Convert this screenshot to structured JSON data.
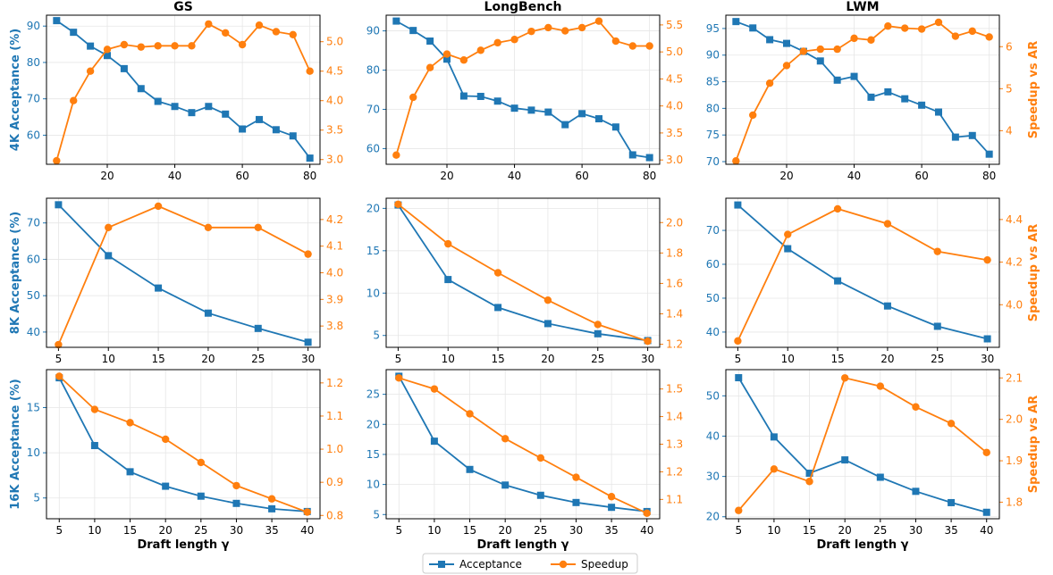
{
  "colors": {
    "acceptance": "#1f77b4",
    "speedup": "#ff7f0e",
    "grid": "#e6e6e6",
    "frame": "#000000"
  },
  "legend": {
    "acceptance": "Acceptance",
    "speedup": "Speedup"
  },
  "chart_data": [
    {
      "type": "line",
      "title": "GS",
      "row": 0,
      "col": 0,
      "ylabel_left": "4K Acceptance (%)",
      "ylabel_right": "",
      "xlabel": "",
      "x": [
        5,
        10,
        15,
        20,
        25,
        30,
        35,
        40,
        45,
        50,
        55,
        60,
        65,
        70,
        75,
        80
      ],
      "xlim": [
        2,
        83
      ],
      "xticks": [
        20,
        40,
        60,
        80
      ],
      "ylim_left": [
        52,
        93
      ],
      "yticks_left": [
        60,
        70,
        80,
        90
      ],
      "ylim_right": [
        2.92,
        5.45
      ],
      "yticks_right": [
        3.0,
        3.5,
        4.0,
        4.5,
        5.0
      ],
      "series": [
        {
          "name": "Acceptance",
          "axis": "left",
          "values": [
            91.5,
            88.3,
            84.5,
            81.9,
            78.3,
            72.8,
            69.3,
            67.9,
            66.2,
            67.9,
            65.8,
            61.7,
            64.3,
            61.5,
            59.8,
            53.7
          ]
        },
        {
          "name": "Speedup",
          "axis": "right",
          "values": [
            2.98,
            4.0,
            4.5,
            4.87,
            4.95,
            4.91,
            4.93,
            4.93,
            4.93,
            5.3,
            5.15,
            4.95,
            5.28,
            5.17,
            5.12,
            4.5
          ]
        }
      ]
    },
    {
      "type": "line",
      "title": "LongBench",
      "row": 0,
      "col": 1,
      "ylabel_left": "",
      "ylabel_right": "",
      "xlabel": "",
      "x": [
        5,
        10,
        15,
        20,
        25,
        30,
        35,
        40,
        45,
        50,
        55,
        60,
        65,
        70,
        75,
        80
      ],
      "xlim": [
        2,
        83
      ],
      "xticks": [
        20,
        40,
        60,
        80
      ],
      "ylim_left": [
        56,
        94
      ],
      "yticks_left": [
        60,
        70,
        80,
        90
      ],
      "ylim_right": [
        2.92,
        5.68
      ],
      "yticks_right": [
        3.0,
        3.5,
        4.0,
        4.5,
        5.0,
        5.5
      ],
      "series": [
        {
          "name": "Acceptance",
          "axis": "left",
          "values": [
            92.5,
            90.1,
            87.4,
            82.8,
            73.4,
            73.3,
            72.1,
            70.3,
            69.8,
            69.3,
            66.1,
            68.9,
            67.6,
            65.5,
            58.4,
            57.7
          ]
        },
        {
          "name": "Speedup",
          "axis": "right",
          "values": [
            3.09,
            4.16,
            4.71,
            4.96,
            4.85,
            5.03,
            5.17,
            5.23,
            5.38,
            5.45,
            5.39,
            5.45,
            5.57,
            5.2,
            5.11,
            5.11
          ]
        }
      ]
    },
    {
      "type": "line",
      "title": "LWM",
      "row": 0,
      "col": 2,
      "ylabel_left": "",
      "ylabel_right": "Speedup vs AR",
      "xlabel": "",
      "x": [
        5,
        10,
        15,
        20,
        25,
        30,
        35,
        40,
        45,
        50,
        55,
        60,
        65,
        70,
        75,
        80
      ],
      "xlim": [
        2,
        83
      ],
      "xticks": [
        20,
        40,
        60,
        80
      ],
      "ylim_left": [
        69.5,
        97.5
      ],
      "yticks_left": [
        70,
        75,
        80,
        85,
        90,
        95
      ],
      "ylim_right": [
        3.2,
        6.75
      ],
      "yticks_right": [
        4,
        5,
        6
      ],
      "series": [
        {
          "name": "Acceptance",
          "axis": "left",
          "values": [
            96.3,
            95.1,
            92.9,
            92.2,
            90.7,
            88.9,
            85.3,
            86.0,
            82.1,
            83.1,
            81.8,
            80.6,
            79.3,
            74.6,
            74.9,
            71.4
          ]
        },
        {
          "name": "Speedup",
          "axis": "right",
          "values": [
            3.28,
            4.37,
            5.13,
            5.55,
            5.89,
            5.94,
            5.94,
            6.2,
            6.16,
            6.49,
            6.44,
            6.42,
            6.58,
            6.25,
            6.37,
            6.23
          ]
        }
      ]
    },
    {
      "type": "line",
      "title": "",
      "row": 1,
      "col": 0,
      "ylabel_left": "8K Acceptance (%)",
      "ylabel_right": "",
      "xlabel": "",
      "x": [
        5,
        10,
        15,
        20,
        25,
        30
      ],
      "xlim": [
        3.8,
        31.2
      ],
      "xticks": [
        5,
        10,
        15,
        20,
        25,
        30
      ],
      "ylim_left": [
        35.8,
        76.8
      ],
      "yticks_left": [
        40,
        50,
        60,
        70
      ],
      "ylim_right": [
        3.72,
        4.28
      ],
      "yticks_right": [
        3.8,
        3.9,
        4.0,
        4.1,
        4.2
      ],
      "series": [
        {
          "name": "Acceptance",
          "axis": "left",
          "values": [
            75.0,
            61.0,
            52.1,
            45.2,
            41.0,
            37.2
          ]
        },
        {
          "name": "Speedup",
          "axis": "right",
          "values": [
            3.73,
            4.17,
            4.25,
            4.17,
            4.17,
            4.07
          ]
        }
      ]
    },
    {
      "type": "line",
      "title": "",
      "row": 1,
      "col": 1,
      "ylabel_left": "",
      "ylabel_right": "",
      "xlabel": "",
      "x": [
        5,
        10,
        15,
        20,
        25,
        30
      ],
      "xlim": [
        3.8,
        31.2
      ],
      "xticks": [
        5,
        10,
        15,
        20,
        25,
        30
      ],
      "ylim_left": [
        3.6,
        21.2
      ],
      "yticks_left": [
        5,
        10,
        15,
        20
      ],
      "ylim_right": [
        1.18,
        2.16
      ],
      "yticks_right": [
        1.2,
        1.4,
        1.6,
        1.8,
        2.0
      ],
      "series": [
        {
          "name": "Acceptance",
          "axis": "left",
          "values": [
            20.4,
            11.6,
            8.3,
            6.4,
            5.2,
            4.4
          ]
        },
        {
          "name": "Speedup",
          "axis": "right",
          "values": [
            2.12,
            1.86,
            1.67,
            1.49,
            1.33,
            1.22
          ]
        }
      ]
    },
    {
      "type": "line",
      "title": "",
      "row": 1,
      "col": 2,
      "ylabel_left": "",
      "ylabel_right": "Speedup vs AR",
      "xlabel": "",
      "x": [
        5,
        10,
        15,
        20,
        25,
        30
      ],
      "xlim": [
        3.8,
        31.2
      ],
      "xticks": [
        5,
        10,
        15,
        20,
        25,
        30
      ],
      "ylim_left": [
        35.5,
        79.5
      ],
      "yticks_left": [
        40,
        50,
        60,
        70
      ],
      "ylim_right": [
        3.8,
        4.5
      ],
      "yticks_right": [
        4.0,
        4.2,
        4.4
      ],
      "series": [
        {
          "name": "Acceptance",
          "axis": "left",
          "values": [
            77.5,
            64.6,
            55.1,
            47.7,
            41.7,
            38.0
          ]
        },
        {
          "name": "Speedup",
          "axis": "right",
          "values": [
            3.83,
            4.33,
            4.45,
            4.38,
            4.25,
            4.21
          ]
        }
      ]
    },
    {
      "type": "line",
      "title": "",
      "row": 2,
      "col": 0,
      "ylabel_left": "16K Acceptance (%)",
      "ylabel_right": "",
      "xlabel": "Draft length γ",
      "x": [
        5,
        10,
        15,
        20,
        25,
        30,
        35,
        40
      ],
      "xlim": [
        3.2,
        41.8
      ],
      "xticks": [
        5,
        10,
        15,
        20,
        25,
        30,
        35,
        40
      ],
      "ylim_left": [
        2.7,
        19.2
      ],
      "yticks_left": [
        5,
        10,
        15
      ],
      "ylim_right": [
        0.79,
        1.24
      ],
      "yticks_right": [
        0.8,
        0.9,
        1.0,
        1.1,
        1.2
      ],
      "series": [
        {
          "name": "Acceptance",
          "axis": "left",
          "values": [
            18.3,
            10.8,
            7.9,
            6.3,
            5.2,
            4.4,
            3.8,
            3.5
          ]
        },
        {
          "name": "Speedup",
          "axis": "right",
          "values": [
            1.22,
            1.12,
            1.08,
            1.03,
            0.96,
            0.89,
            0.85,
            0.81
          ]
        }
      ]
    },
    {
      "type": "line",
      "title": "",
      "row": 2,
      "col": 1,
      "ylabel_left": "",
      "ylabel_right": "",
      "xlabel": "Draft length γ",
      "x": [
        5,
        10,
        15,
        20,
        25,
        30,
        35,
        40
      ],
      "xlim": [
        3.2,
        41.8
      ],
      "xticks": [
        5,
        10,
        15,
        20,
        25,
        30,
        35,
        40
      ],
      "ylim_left": [
        4.3,
        29.1
      ],
      "yticks_left": [
        5,
        10,
        15,
        20,
        25
      ],
      "ylim_right": [
        1.03,
        1.57
      ],
      "yticks_right": [
        1.1,
        1.2,
        1.3,
        1.4,
        1.5
      ],
      "series": [
        {
          "name": "Acceptance",
          "axis": "left",
          "values": [
            28.0,
            17.2,
            12.5,
            9.9,
            8.2,
            7.0,
            6.2,
            5.5
          ]
        },
        {
          "name": "Speedup",
          "axis": "right",
          "values": [
            1.54,
            1.5,
            1.41,
            1.32,
            1.25,
            1.18,
            1.11,
            1.05
          ]
        }
      ]
    },
    {
      "type": "line",
      "title": "",
      "row": 2,
      "col": 2,
      "ylabel_left": "",
      "ylabel_right": "Speedup vs AR",
      "xlabel": "Draft length γ",
      "x": [
        5,
        10,
        15,
        20,
        25,
        30,
        35,
        40
      ],
      "xlim": [
        3.2,
        41.8
      ],
      "xticks": [
        5,
        10,
        15,
        20,
        25,
        30,
        35,
        40
      ],
      "ylim_left": [
        19.5,
        56.5
      ],
      "yticks_left": [
        20,
        30,
        40,
        50
      ],
      "ylim_right": [
        1.76,
        2.12
      ],
      "yticks_right": [
        1.8,
        1.9,
        2.0,
        2.1
      ],
      "series": [
        {
          "name": "Acceptance",
          "axis": "left",
          "values": [
            54.5,
            39.8,
            30.8,
            34.1,
            29.8,
            26.3,
            23.5,
            21.1
          ]
        },
        {
          "name": "Speedup",
          "axis": "right",
          "values": [
            1.78,
            1.88,
            1.85,
            2.1,
            2.08,
            2.03,
            1.99,
            1.92
          ]
        }
      ]
    }
  ]
}
